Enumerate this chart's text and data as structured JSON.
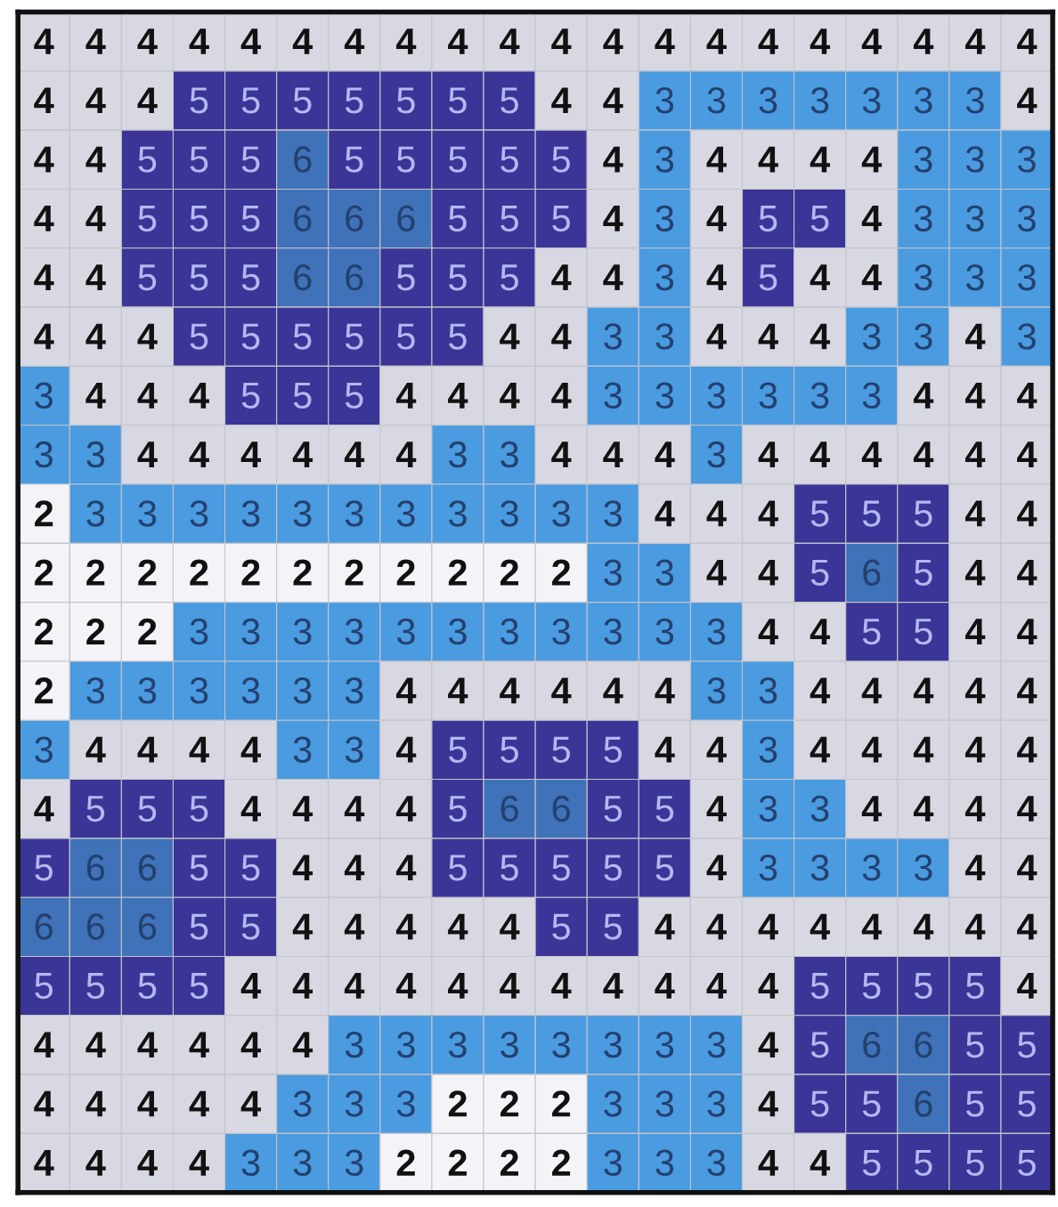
{
  "chart_data": {
    "type": "heatmap",
    "data_labels": true,
    "categories": [
      null,
      null,
      null,
      null,
      null,
      null,
      null,
      null,
      null,
      null,
      null,
      null,
      null,
      null,
      null,
      null,
      null,
      null,
      null,
      null
    ],
    "y_categories": [
      null,
      null,
      null,
      null,
      null,
      null,
      null,
      null,
      null,
      null,
      null,
      null,
      null,
      null,
      null,
      null,
      null,
      null,
      null,
      null
    ],
    "colors": [
      "#f4f4f8",
      "#4a9be0",
      "#d8d8e2",
      "#3a3596",
      "#3f72b8"
    ],
    "cells": [
      [
        4,
        4,
        4,
        4,
        4,
        4,
        4,
        4,
        4,
        4,
        4,
        4,
        4,
        4,
        4,
        4,
        4,
        4,
        4,
        4
      ],
      [
        4,
        4,
        4,
        5,
        5,
        5,
        5,
        5,
        5,
        5,
        4,
        4,
        3,
        3,
        3,
        3,
        3,
        3,
        3,
        4
      ],
      [
        4,
        4,
        5,
        5,
        5,
        6,
        5,
        5,
        5,
        5,
        5,
        4,
        3,
        4,
        4,
        4,
        4,
        3,
        3,
        3
      ],
      [
        4,
        4,
        5,
        5,
        5,
        6,
        6,
        6,
        5,
        5,
        5,
        4,
        3,
        4,
        5,
        5,
        4,
        3,
        3,
        3
      ],
      [
        4,
        4,
        5,
        5,
        5,
        6,
        6,
        5,
        5,
        5,
        4,
        4,
        3,
        4,
        5,
        4,
        4,
        3,
        3,
        3
      ],
      [
        4,
        4,
        4,
        5,
        5,
        5,
        5,
        5,
        5,
        4,
        4,
        3,
        3,
        4,
        4,
        4,
        3,
        3,
        4,
        3
      ],
      [
        3,
        4,
        4,
        4,
        5,
        5,
        5,
        4,
        4,
        4,
        4,
        3,
        3,
        3,
        3,
        3,
        3,
        4,
        4,
        4
      ],
      [
        3,
        3,
        4,
        4,
        4,
        4,
        4,
        4,
        3,
        3,
        4,
        4,
        4,
        3,
        4,
        4,
        4,
        4,
        4,
        4
      ],
      [
        2,
        3,
        3,
        3,
        3,
        3,
        3,
        3,
        3,
        3,
        3,
        3,
        4,
        4,
        4,
        5,
        5,
        5,
        4,
        4
      ],
      [
        2,
        2,
        2,
        2,
        2,
        2,
        2,
        2,
        2,
        2,
        2,
        3,
        3,
        4,
        4,
        5,
        6,
        5,
        4,
        4
      ],
      [
        2,
        2,
        2,
        3,
        3,
        3,
        3,
        3,
        3,
        3,
        3,
        3,
        3,
        3,
        4,
        4,
        5,
        5,
        4,
        4
      ],
      [
        2,
        3,
        3,
        3,
        3,
        3,
        3,
        4,
        4,
        4,
        4,
        4,
        4,
        3,
        3,
        4,
        4,
        4,
        4,
        4
      ],
      [
        3,
        4,
        4,
        4,
        4,
        3,
        3,
        4,
        5,
        5,
        5,
        5,
        4,
        4,
        3,
        4,
        4,
        4,
        4,
        4
      ],
      [
        4,
        5,
        5,
        5,
        4,
        4,
        4,
        4,
        5,
        6,
        6,
        5,
        5,
        4,
        3,
        3,
        4,
        4,
        4,
        4
      ],
      [
        5,
        6,
        6,
        5,
        5,
        4,
        4,
        4,
        5,
        5,
        5,
        5,
        5,
        4,
        3,
        3,
        3,
        3,
        4,
        4
      ],
      [
        6,
        6,
        6,
        5,
        5,
        4,
        4,
        4,
        4,
        4,
        5,
        5,
        4,
        4,
        4,
        4,
        4,
        4,
        4,
        4
      ],
      [
        5,
        5,
        5,
        5,
        4,
        4,
        4,
        4,
        4,
        4,
        4,
        4,
        4,
        4,
        4,
        5,
        5,
        5,
        5,
        4
      ],
      [
        4,
        4,
        4,
        4,
        4,
        4,
        3,
        3,
        3,
        3,
        3,
        3,
        3,
        3,
        4,
        5,
        6,
        6,
        5,
        5
      ],
      [
        4,
        4,
        4,
        4,
        4,
        3,
        3,
        3,
        2,
        2,
        2,
        3,
        3,
        3,
        4,
        5,
        5,
        6,
        5,
        5
      ],
      [
        4,
        4,
        4,
        4,
        3,
        3,
        3,
        2,
        2,
        2,
        2,
        3,
        3,
        3,
        4,
        4,
        5,
        5,
        5,
        5
      ]
    ]
  }
}
